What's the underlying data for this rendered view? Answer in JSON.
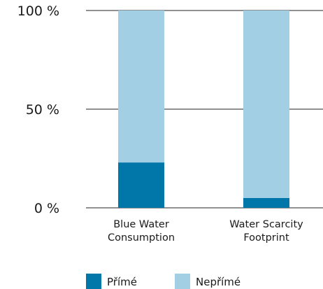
{
  "chart_data": {
    "type": "bar",
    "stacked": true,
    "categories": [
      [
        "Blue Water",
        "Consumption"
      ],
      [
        "Water Scarcity",
        "Footprint"
      ]
    ],
    "series": [
      {
        "name": "Přímé",
        "color": "#0077a8",
        "values": [
          23,
          5
        ]
      },
      {
        "name": "Nepřímé",
        "color": "#a3cfe5",
        "values": [
          77,
          95
        ]
      }
    ],
    "ylim": [
      0,
      100
    ],
    "yticks": [
      {
        "value": 0,
        "label": "0 %"
      },
      {
        "value": 50,
        "label": "50 %"
      },
      {
        "value": 100,
        "label": "100 %"
      }
    ],
    "grid": true,
    "legend_position": "bottom"
  }
}
